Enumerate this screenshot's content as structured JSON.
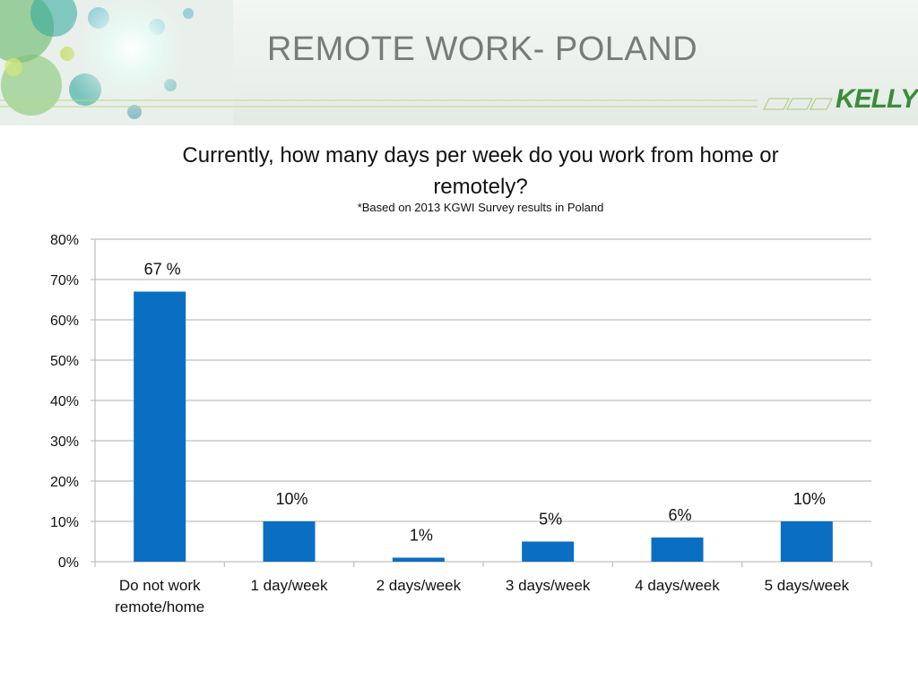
{
  "slide": {
    "title": "REMOTE WORK- POLAND",
    "logo_text": "KELLY"
  },
  "colors": {
    "bar": "#0a6fc2",
    "grid": "#bfbfbf",
    "title": "#7a7a7a",
    "logo": "#3a8d3a"
  },
  "chart_data": {
    "type": "bar",
    "title": "Currently, how many days per week do you work from home or remotely?",
    "subtitle": "*Based on 2013 KGWI Survey results in Poland",
    "categories": [
      [
        "Do not work",
        "remote/home"
      ],
      [
        "1 day/week"
      ],
      [
        "2 days/week"
      ],
      [
        "3 days/week"
      ],
      [
        "4 days/week"
      ],
      [
        "5 days/week"
      ]
    ],
    "values": [
      67,
      10,
      1,
      5,
      6,
      10
    ],
    "data_labels": [
      "67 %",
      "10%",
      "1%",
      "5%",
      "6%",
      "10%"
    ],
    "yticks": [
      "0%",
      "10%",
      "20%",
      "30%",
      "40%",
      "50%",
      "60%",
      "70%",
      "80%"
    ],
    "ylim": [
      0,
      80
    ],
    "grid": true,
    "legend": "none"
  }
}
